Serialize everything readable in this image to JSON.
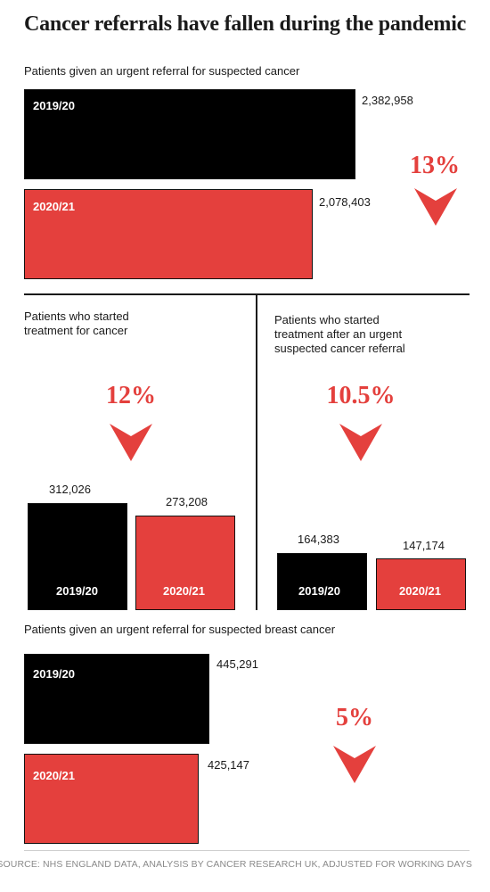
{
  "title": "Cancer referrals have fallen during the pandemic",
  "source": "SOURCE: NHS ENGLAND DATA, ANALYSIS BY CANCER RESEARCH UK, ADJUSTED FOR WORKING DAYS",
  "colors": {
    "y2019": "#000000",
    "y2020": "#e4403d",
    "accent": "#e4403d"
  },
  "chart_data": [
    {
      "type": "bar",
      "title": "Patients given an urgent referral for suspected cancer",
      "categories": [
        "2019/20",
        "2020/21"
      ],
      "values": [
        2382958,
        2078403
      ],
      "value_labels": [
        "2,382,958",
        "2,078,403"
      ],
      "change": "13%"
    },
    {
      "type": "bar",
      "title": "Patients who started treatment for cancer",
      "categories": [
        "2019/20",
        "2020/21"
      ],
      "values": [
        312026,
        273208
      ],
      "value_labels": [
        "312,026",
        "273,208"
      ],
      "change": "12%"
    },
    {
      "type": "bar",
      "title": "Patients who started treatment after an urgent suspected cancer referral",
      "categories": [
        "2019/20",
        "2020/21"
      ],
      "values": [
        164383,
        147174
      ],
      "value_labels": [
        "164,383",
        "147,174"
      ],
      "change": "10.5%"
    },
    {
      "type": "bar",
      "title": "Patients given an urgent referral for suspected breast cancer",
      "categories": [
        "2019/20",
        "2020/21"
      ],
      "values": [
        445291,
        425147
      ],
      "value_labels": [
        "445,291",
        "425,147"
      ],
      "change": "5%"
    }
  ]
}
